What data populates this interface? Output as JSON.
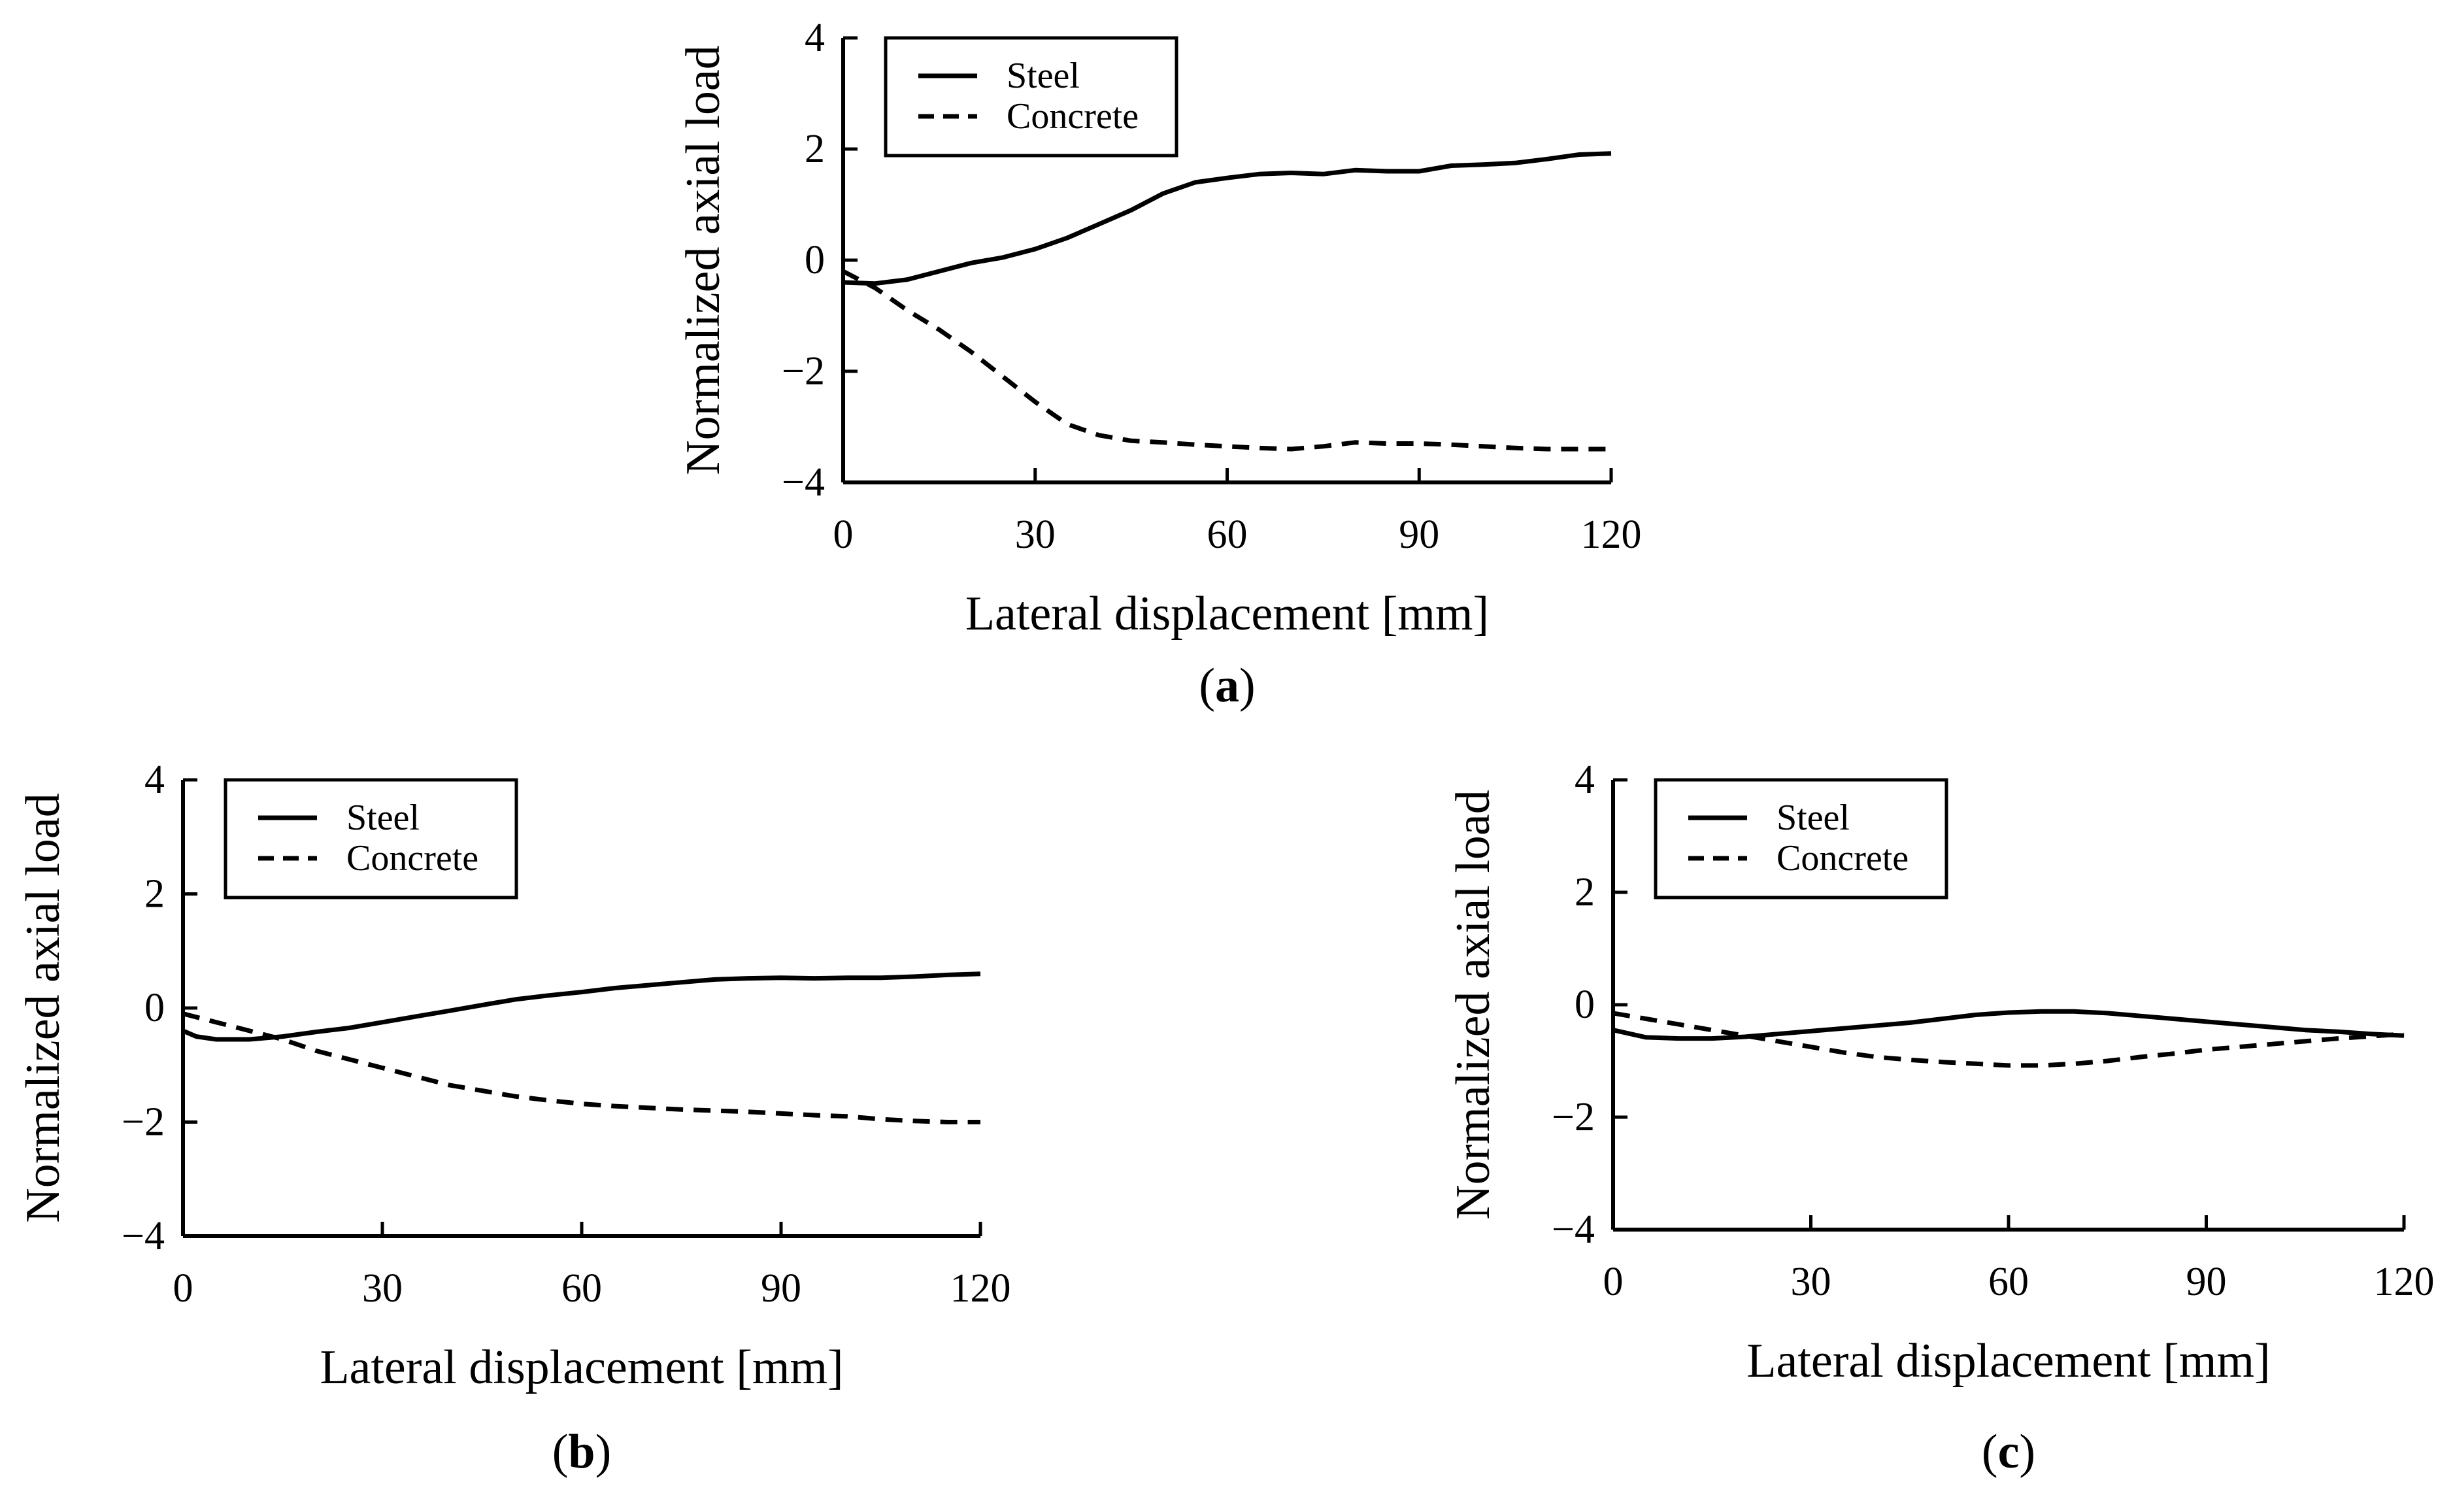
{
  "chart_data": [
    {
      "id": "a",
      "type": "line",
      "panel_label": "a",
      "xlabel": "Lateral displacement [mm]",
      "ylabel": "Normalized axial load",
      "xlim": [
        0,
        120
      ],
      "ylim": [
        -4,
        4
      ],
      "xticks": [
        0,
        30,
        60,
        90,
        120
      ],
      "yticks": [
        4,
        2,
        0,
        -2,
        -4
      ],
      "ytick_labels": [
        "4",
        "2",
        "0",
        "−2",
        "−4"
      ],
      "legend": {
        "position": "top-left",
        "entries": [
          "Steel",
          "Concrete"
        ]
      },
      "series": [
        {
          "name": "Steel",
          "style": "solid",
          "x": [
            0,
            5,
            10,
            15,
            20,
            25,
            30,
            35,
            40,
            45,
            50,
            55,
            60,
            65,
            70,
            75,
            80,
            85,
            90,
            95,
            100,
            105,
            110,
            115,
            120
          ],
          "y": [
            -0.4,
            -0.42,
            -0.35,
            -0.2,
            -0.05,
            0.05,
            0.2,
            0.4,
            0.65,
            0.9,
            1.2,
            1.4,
            1.48,
            1.55,
            1.57,
            1.55,
            1.62,
            1.6,
            1.6,
            1.7,
            1.72,
            1.75,
            1.82,
            1.9,
            1.92
          ]
        },
        {
          "name": "Concrete",
          "style": "dashed",
          "x": [
            0,
            5,
            10,
            15,
            20,
            25,
            30,
            35,
            40,
            45,
            50,
            55,
            60,
            65,
            70,
            75,
            80,
            85,
            90,
            95,
            100,
            105,
            110,
            115,
            120
          ],
          "y": [
            -0.2,
            -0.5,
            -0.9,
            -1.25,
            -1.65,
            -2.1,
            -2.55,
            -2.95,
            -3.15,
            -3.25,
            -3.28,
            -3.32,
            -3.35,
            -3.38,
            -3.4,
            -3.35,
            -3.28,
            -3.3,
            -3.3,
            -3.32,
            -3.35,
            -3.38,
            -3.4,
            -3.4,
            -3.4
          ]
        }
      ]
    },
    {
      "id": "b",
      "type": "line",
      "panel_label": "b",
      "xlabel": "Lateral displacement [mm]",
      "ylabel": "Normalized axial load",
      "xlim": [
        0,
        120
      ],
      "ylim": [
        -4,
        4
      ],
      "xticks": [
        0,
        30,
        60,
        90,
        120
      ],
      "yticks": [
        4,
        2,
        0,
        -2,
        -4
      ],
      "ytick_labels": [
        "4",
        "2",
        "0",
        "−2",
        "−4"
      ],
      "legend": {
        "position": "top-left",
        "entries": [
          "Steel",
          "Concrete"
        ]
      },
      "series": [
        {
          "name": "Steel",
          "style": "solid",
          "x": [
            0,
            2,
            5,
            10,
            15,
            20,
            25,
            30,
            35,
            40,
            45,
            50,
            55,
            60,
            65,
            70,
            75,
            80,
            85,
            90,
            95,
            100,
            105,
            110,
            115,
            120
          ],
          "y": [
            -0.4,
            -0.5,
            -0.55,
            -0.55,
            -0.5,
            -0.42,
            -0.35,
            -0.25,
            -0.15,
            -0.05,
            0.05,
            0.15,
            0.22,
            0.28,
            0.35,
            0.4,
            0.45,
            0.5,
            0.52,
            0.53,
            0.52,
            0.53,
            0.53,
            0.55,
            0.58,
            0.6
          ]
        },
        {
          "name": "Concrete",
          "style": "dashed",
          "x": [
            0,
            5,
            10,
            15,
            20,
            25,
            30,
            35,
            40,
            45,
            50,
            55,
            60,
            65,
            70,
            75,
            80,
            85,
            90,
            95,
            100,
            105,
            110,
            115,
            120
          ],
          "y": [
            -0.1,
            -0.25,
            -0.4,
            -0.55,
            -0.75,
            -0.9,
            -1.05,
            -1.2,
            -1.35,
            -1.45,
            -1.55,
            -1.62,
            -1.68,
            -1.72,
            -1.75,
            -1.78,
            -1.8,
            -1.82,
            -1.85,
            -1.88,
            -1.9,
            -1.95,
            -1.98,
            -2.0,
            -2.0
          ]
        }
      ]
    },
    {
      "id": "c",
      "type": "line",
      "panel_label": "c",
      "xlabel": "Lateral displacement [mm]",
      "ylabel": "Normalized axial load",
      "xlim": [
        0,
        120
      ],
      "ylim": [
        -4,
        4
      ],
      "xticks": [
        0,
        30,
        60,
        90,
        120
      ],
      "yticks": [
        4,
        2,
        0,
        -2,
        -4
      ],
      "ytick_labels": [
        "4",
        "2",
        "0",
        "−2",
        "−4"
      ],
      "legend": {
        "position": "top-left",
        "entries": [
          "Steel",
          "Concrete"
        ]
      },
      "series": [
        {
          "name": "Steel",
          "style": "solid",
          "x": [
            0,
            5,
            10,
            15,
            20,
            25,
            30,
            35,
            40,
            45,
            50,
            55,
            60,
            65,
            70,
            75,
            80,
            85,
            90,
            95,
            100,
            105,
            110,
            115,
            120
          ],
          "y": [
            -0.45,
            -0.58,
            -0.6,
            -0.6,
            -0.57,
            -0.52,
            -0.47,
            -0.42,
            -0.37,
            -0.32,
            -0.25,
            -0.18,
            -0.14,
            -0.12,
            -0.12,
            -0.15,
            -0.2,
            -0.25,
            -0.3,
            -0.35,
            -0.4,
            -0.45,
            -0.48,
            -0.52,
            -0.55
          ]
        },
        {
          "name": "Concrete",
          "style": "dashed",
          "x": [
            0,
            5,
            10,
            15,
            20,
            25,
            30,
            35,
            40,
            45,
            50,
            55,
            60,
            65,
            70,
            75,
            80,
            85,
            90,
            95,
            100,
            105,
            110,
            115,
            120
          ],
          "y": [
            -0.15,
            -0.25,
            -0.35,
            -0.45,
            -0.55,
            -0.65,
            -0.75,
            -0.85,
            -0.93,
            -0.98,
            -1.02,
            -1.05,
            -1.08,
            -1.08,
            -1.05,
            -1.0,
            -0.93,
            -0.87,
            -0.8,
            -0.75,
            -0.7,
            -0.65,
            -0.6,
            -0.56,
            -0.52
          ]
        }
      ]
    }
  ]
}
